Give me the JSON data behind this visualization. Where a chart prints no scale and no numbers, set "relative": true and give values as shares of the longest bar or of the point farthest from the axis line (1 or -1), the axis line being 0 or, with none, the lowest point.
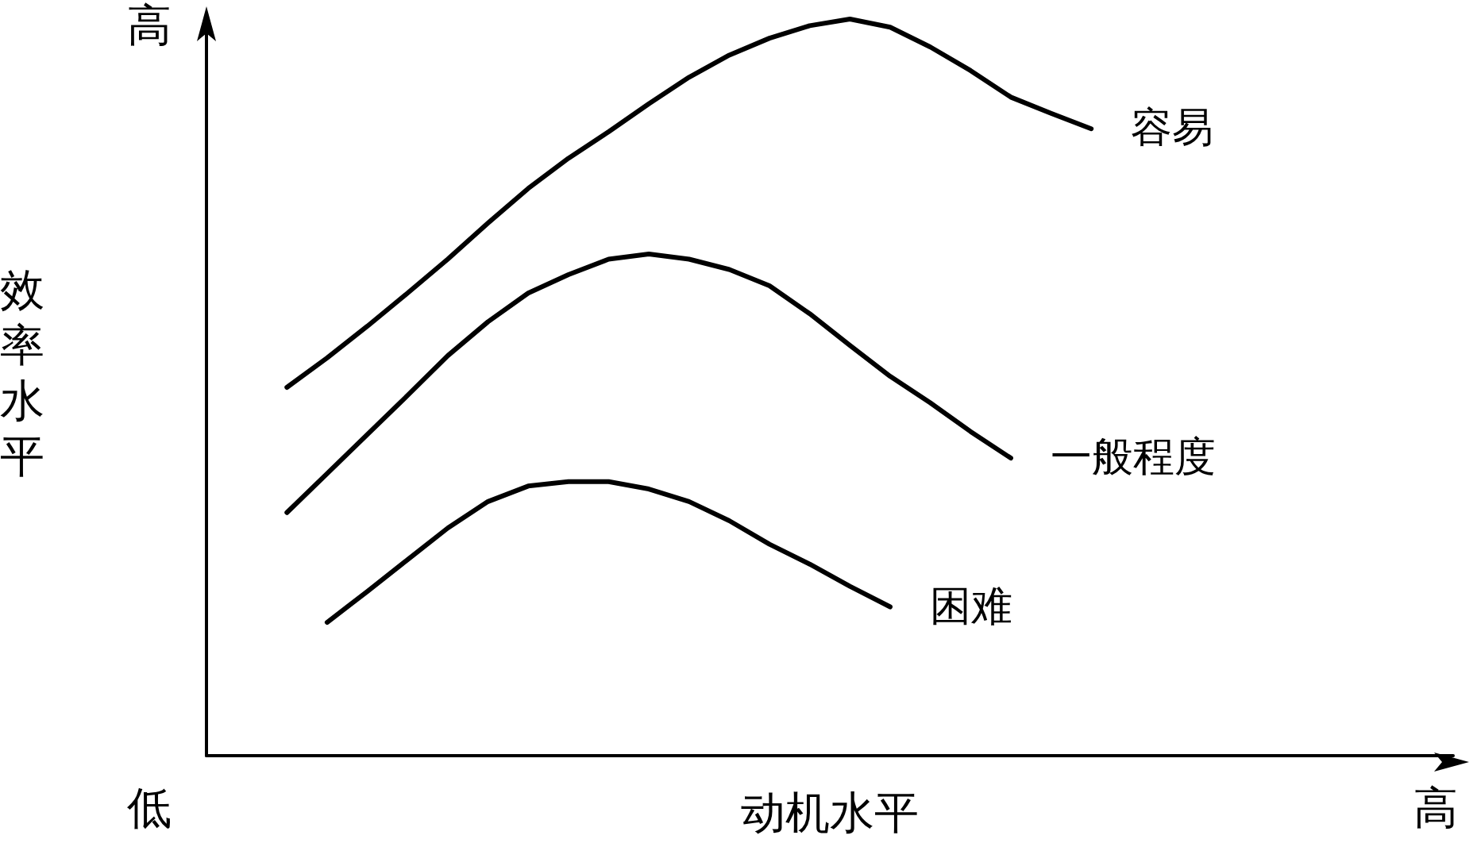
{
  "chart_data": {
    "type": "line",
    "relative": true,
    "xlabel": "动机水平",
    "ylabel": "效率水平",
    "annotations": [
      "高",
      "低",
      "高"
    ],
    "legend": false,
    "grid": false,
    "marker": "none",
    "line_style": "solid",
    "categories": [
      null,
      null,
      null,
      null,
      null,
      null,
      null,
      null,
      null,
      null,
      null,
      null,
      null,
      null,
      null,
      null,
      null,
      null,
      null,
      null,
      null,
      null,
      null,
      null,
      null,
      null,
      null,
      null,
      null,
      null,
      null,
      null
    ],
    "series": [
      {
        "name": "容易",
        "color": "#000000",
        "values": [
          null,
          null,
          0.5,
          0.54,
          0.583,
          0.628,
          0.674,
          0.723,
          0.77,
          0.811,
          0.847,
          0.885,
          0.921,
          0.951,
          0.974,
          0.991,
          1,
          0.989,
          0.962,
          0.93,
          0.894,
          0.872,
          0.851,
          null,
          null,
          null,
          null,
          null,
          null,
          null,
          null,
          null
        ]
      },
      {
        "name": "一般程度",
        "color": "#000000",
        "values": [
          null,
          null,
          0.33,
          0.383,
          0.436,
          0.489,
          0.543,
          0.589,
          0.628,
          0.653,
          0.674,
          0.681,
          0.674,
          0.66,
          0.638,
          0.6,
          0.557,
          0.515,
          0.479,
          0.44,
          0.404,
          null,
          null,
          null,
          null,
          null,
          null,
          null,
          null,
          null,
          null,
          null
        ]
      },
      {
        "name": "困难",
        "color": "#000000",
        "values": [
          null,
          null,
          null,
          0.181,
          0.223,
          0.266,
          0.309,
          0.345,
          0.366,
          0.372,
          0.372,
          0.362,
          0.345,
          0.319,
          0.287,
          0.26,
          0.23,
          0.202,
          null,
          null,
          null,
          null,
          null,
          null,
          null,
          null,
          null,
          null,
          null,
          null,
          null,
          null
        ]
      }
    ]
  }
}
